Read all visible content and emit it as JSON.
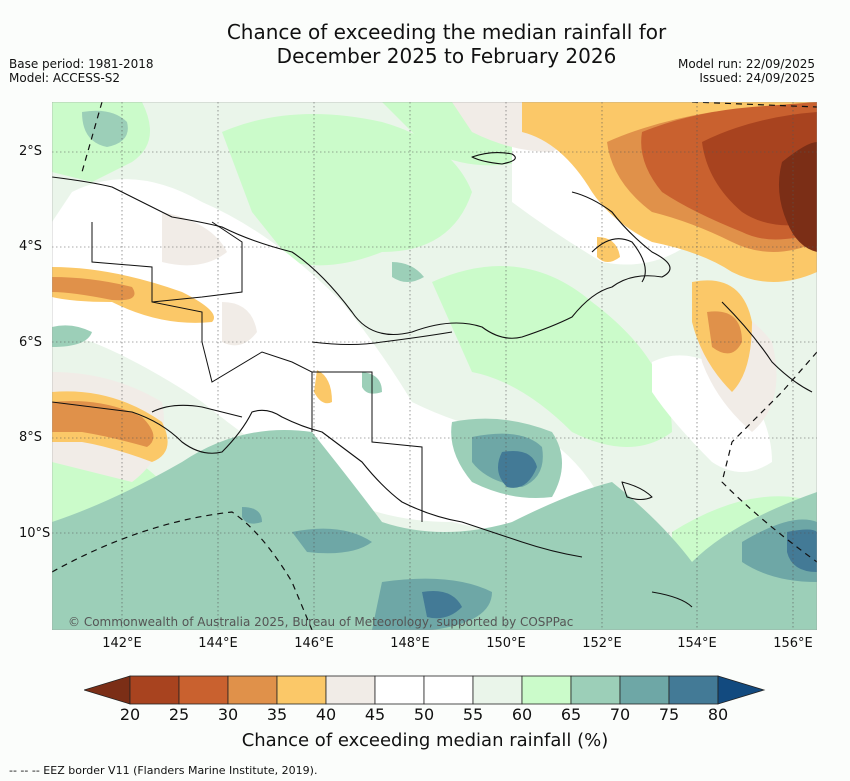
{
  "title": {
    "line1": "Chance of exceeding the median rainfall for",
    "line2": "December 2025 to February 2026"
  },
  "meta_left": {
    "base_period": "Base period: 1981-2018",
    "model": "Model: ACCESS-S2"
  },
  "meta_right": {
    "model_run": "Model run: 22/09/2025",
    "issued": "Issued: 24/09/2025"
  },
  "map": {
    "region": "Papua New Guinea",
    "lat_labels": [
      "2°S",
      "4°S",
      "6°S",
      "8°S",
      "10°S"
    ],
    "lon_labels": [
      "142°E",
      "144°E",
      "146°E",
      "148°E",
      "150°E",
      "152°E",
      "154°E",
      "156°E"
    ],
    "copyright": "© Commonwealth of Australia 2025, Bureau of Meteorology, supported by COSPPac"
  },
  "colorbar": {
    "ticks": [
      "20",
      "25",
      "30",
      "35",
      "40",
      "45",
      "50",
      "55",
      "60",
      "65",
      "70",
      "75",
      "80"
    ],
    "colors": [
      "#7b2e16",
      "#a8431f",
      "#c9612f",
      "#e0914a",
      "#fbc868",
      "#f1ece7",
      "#ffffff",
      "#ffffff",
      "#eaf5ea",
      "#cbfbca",
      "#9ccfb8",
      "#6ea7a6",
      "#437a96",
      "#124a7f"
    ],
    "title": "Chance of exceeding median rainfall (%)"
  },
  "footnote": "-- -- -- EEZ border V11 (Flanders Marine Institute, 2019)."
}
